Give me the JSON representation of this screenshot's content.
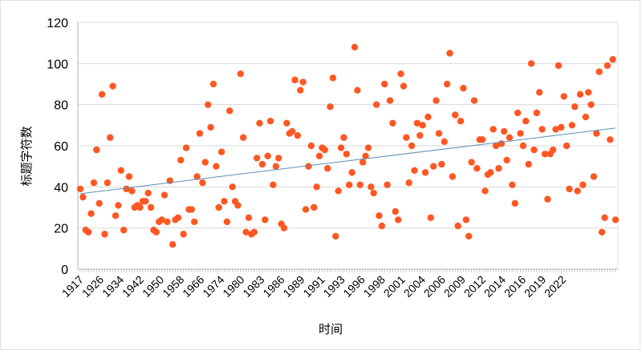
{
  "chart_data": {
    "type": "scatter",
    "title": "",
    "xlabel": "时间",
    "ylabel": "标题字符数",
    "ylim": [
      0,
      120
    ],
    "yticks": [
      0,
      20,
      40,
      60,
      80,
      100,
      120
    ],
    "xtick_labels": [
      "1917",
      "1926",
      "1934",
      "1942",
      "1950",
      "1958",
      "1966",
      "1974",
      "1980",
      "1983",
      "1986",
      "1989",
      "1991",
      "1993",
      "1996",
      "1998",
      "2001",
      "2004",
      "2006",
      "2009",
      "2012",
      "2014",
      "2016",
      "2019",
      "2022"
    ],
    "grid": "horizontal",
    "trendline": "linear",
    "colors": {
      "points": "#ff5722",
      "trendline": "#5b8fb9",
      "grid": "#d9d9d9"
    },
    "values": [
      39,
      35,
      19,
      18,
      27,
      42,
      58,
      32,
      85,
      17,
      42,
      64,
      89,
      26,
      31,
      48,
      19,
      39,
      45,
      38,
      30,
      31,
      30,
      33,
      33,
      37,
      30,
      19,
      18,
      23,
      24,
      36,
      23,
      43,
      12,
      24,
      25,
      53,
      17,
      59,
      29,
      29,
      23,
      45,
      66,
      42,
      52,
      80,
      69,
      90,
      50,
      30,
      57,
      33,
      23,
      77,
      40,
      33,
      31,
      95,
      64,
      18,
      25,
      17,
      18,
      54,
      71,
      51,
      24,
      55,
      72,
      41,
      50,
      54,
      22,
      20,
      71,
      66,
      67,
      92,
      65,
      87,
      91,
      29,
      50,
      60,
      30,
      40,
      55,
      59,
      58,
      49,
      79,
      93,
      16,
      38,
      59,
      64,
      56,
      41,
      47,
      108,
      87,
      41,
      52,
      55,
      59,
      40,
      37,
      80,
      26,
      21,
      90,
      41,
      82,
      71,
      28,
      24,
      95,
      89,
      64,
      42,
      60,
      48,
      71,
      65,
      70,
      47,
      74,
      25,
      50,
      82,
      66,
      51,
      62,
      90,
      105,
      45,
      75,
      21,
      72,
      88,
      24,
      16,
      52,
      82,
      49,
      63,
      63,
      38,
      46,
      47,
      68,
      60,
      49,
      61,
      67,
      53,
      64,
      41,
      32,
      76,
      66,
      60,
      72,
      51,
      100,
      58,
      76,
      86,
      68,
      56,
      34,
      56,
      58,
      68,
      99,
      69,
      84,
      60,
      39,
      70,
      79,
      38,
      85,
      41,
      74,
      86,
      80,
      45,
      66,
      96,
      18,
      25,
      99,
      63,
      102,
      24
    ]
  }
}
